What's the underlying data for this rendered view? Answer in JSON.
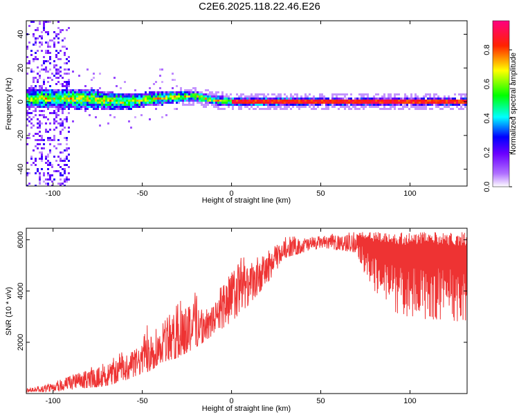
{
  "page": {
    "title": "C2E6.2025.118.22.46.E26"
  },
  "chart_data": [
    {
      "type": "heatmap",
      "title": "C2E6.2025.118.22.46.E26",
      "xlabel": "Height of straight line (km)",
      "ylabel": "Frequency (Hz)",
      "xlim": [
        -115,
        132
      ],
      "ylim": [
        -50,
        48
      ],
      "x_ticks": [
        -100,
        -50,
        0,
        50,
        100
      ],
      "y_ticks": [
        -40,
        -20,
        0,
        20,
        40
      ],
      "colorbar": {
        "label": "Normalized spectral amplitude",
        "range": [
          0,
          0.97
        ],
        "ticks": [
          0.0,
          0.2,
          0.4,
          0.6,
          0.8
        ],
        "colormap": [
          "#ffffff",
          "#7a00ff",
          "#0000ff",
          "#00ffff",
          "#00ff00",
          "#ffff00",
          "#ff0000",
          "#ff0080"
        ]
      },
      "band": {
        "center_freq_hz": [
          [
            -115,
            2
          ],
          [
            -100,
            2
          ],
          [
            -80,
            1.5
          ],
          [
            -60,
            0
          ],
          [
            -40,
            2
          ],
          [
            -30,
            3
          ],
          [
            -20,
            3
          ],
          [
            -10,
            1
          ],
          [
            0,
            0
          ],
          [
            20,
            0
          ],
          [
            60,
            0
          ],
          [
            100,
            0
          ],
          [
            132,
            0
          ]
        ],
        "half_width_hz": [
          [
            -115,
            6
          ],
          [
            -100,
            6
          ],
          [
            -80,
            6
          ],
          [
            -60,
            5
          ],
          [
            -40,
            4
          ],
          [
            -20,
            3
          ],
          [
            0,
            2.5
          ],
          [
            50,
            2
          ],
          [
            132,
            2
          ]
        ]
      },
      "noise_region_km": [
        -115,
        -90
      ]
    },
    {
      "type": "line",
      "xlabel": "Height of straight line (km)",
      "ylabel": "SNR (10 * v/v)",
      "xlim": [
        -115,
        132
      ],
      "ylim": [
        0,
        6450
      ],
      "x_ticks": [
        -100,
        -50,
        0,
        50,
        100
      ],
      "y_ticks": [
        2000,
        4000,
        6000
      ],
      "color": "#ee3333",
      "envelope_upper": [
        [
          -115,
          200
        ],
        [
          -100,
          400
        ],
        [
          -90,
          800
        ],
        [
          -70,
          1200
        ],
        [
          -60,
          1700
        ],
        [
          -50,
          2000
        ],
        [
          -45,
          3200
        ],
        [
          -40,
          2600
        ],
        [
          -30,
          3500
        ],
        [
          -20,
          4300
        ],
        [
          -15,
          3200
        ],
        [
          -10,
          3600
        ],
        [
          -5,
          4700
        ],
        [
          0,
          5000
        ],
        [
          5,
          5500
        ],
        [
          10,
          5000
        ],
        [
          20,
          5700
        ],
        [
          30,
          6100
        ],
        [
          50,
          6200
        ],
        [
          70,
          6300
        ],
        [
          132,
          6300
        ]
      ],
      "envelope_lower": [
        [
          -115,
          50
        ],
        [
          -100,
          80
        ],
        [
          -90,
          150
        ],
        [
          -70,
          300
        ],
        [
          -60,
          500
        ],
        [
          -50,
          800
        ],
        [
          -45,
          900
        ],
        [
          -40,
          1200
        ],
        [
          -30,
          1400
        ],
        [
          -20,
          1800
        ],
        [
          -10,
          2300
        ],
        [
          0,
          2800
        ],
        [
          10,
          3500
        ],
        [
          20,
          4300
        ],
        [
          30,
          5300
        ],
        [
          50,
          5700
        ],
        [
          70,
          5500
        ],
        [
          75,
          4600
        ],
        [
          80,
          3800
        ],
        [
          90,
          3200
        ],
        [
          100,
          2900
        ],
        [
          132,
          2800
        ]
      ]
    }
  ]
}
